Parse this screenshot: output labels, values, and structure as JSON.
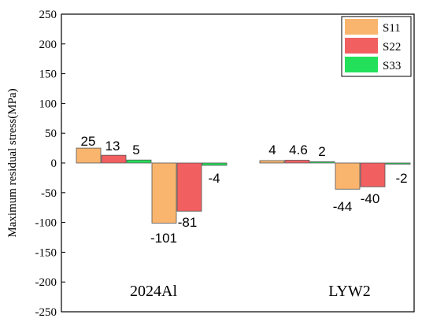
{
  "chart_data": {
    "type": "bar",
    "categories": [
      "2024Al",
      "LYW2"
    ],
    "series": [
      {
        "name": "S11",
        "values": [
          25,
          4
        ],
        "color": "#f9b56d"
      },
      {
        "name": "S22",
        "values": [
          13,
          4.6
        ],
        "color": "#f25f61"
      },
      {
        "name": "S33",
        "values": [
          5,
          2
        ],
        "color": "#23e05a"
      },
      {
        "name": "",
        "values": [
          -101,
          -44
        ],
        "color": "#f9b56d"
      },
      {
        "name": "",
        "values": [
          -81,
          -40
        ],
        "color": "#f25f61"
      },
      {
        "name": "",
        "values": [
          -4,
          -2
        ],
        "color": "#23e05a"
      }
    ],
    "data_labels": [
      [
        "25",
        "13",
        "5",
        "-101",
        "-81",
        "-4"
      ],
      [
        "4",
        "4.6",
        "2",
        "-44",
        "-40",
        "-2"
      ]
    ],
    "ylabel": "Maximum residual stress(MPa)",
    "xlabel": "",
    "ylim": [
      -250,
      250
    ],
    "yticks": [
      250,
      200,
      150,
      100,
      50,
      0,
      -50,
      -100,
      -150,
      -200,
      -250
    ],
    "legend": {
      "placement": "top-right",
      "entries": [
        {
          "label": "S11",
          "color": "#f9b56d"
        },
        {
          "label": "S22",
          "color": "#f25f61"
        },
        {
          "label": "S33",
          "color": "#23e05a"
        }
      ]
    },
    "grid": false
  }
}
